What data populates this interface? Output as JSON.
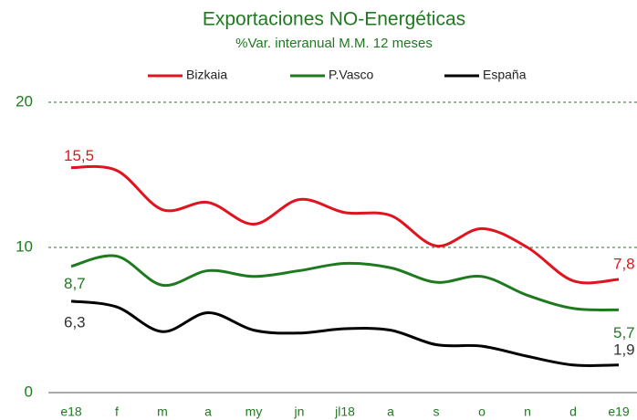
{
  "chart_data": {
    "type": "line",
    "title": "Exportaciones NO-Energéticas",
    "subtitle": "%Var. interanual M.M. 12 meses",
    "categories": [
      "e18",
      "f",
      "m",
      "a",
      "my",
      "jn",
      "jl18",
      "a",
      "s",
      "o",
      "n",
      "d",
      "e19"
    ],
    "series": [
      {
        "name": "Bizkaia",
        "color": "#e0141e",
        "values": [
          15.5,
          15.3,
          12.6,
          13.1,
          11.6,
          13.3,
          12.4,
          12.2,
          10.1,
          11.3,
          10.0,
          7.7,
          7.8
        ],
        "value_labels": [
          "15,5",
          null,
          null,
          null,
          null,
          null,
          null,
          null,
          null,
          null,
          null,
          null,
          "7,8"
        ]
      },
      {
        "name": "P.Vasco",
        "color": "#1f7a1f",
        "values": [
          8.7,
          9.4,
          7.4,
          8.4,
          8.0,
          8.4,
          8.9,
          8.6,
          7.6,
          8.0,
          6.7,
          5.8,
          5.7
        ],
        "value_labels": [
          "8,7",
          null,
          null,
          null,
          null,
          null,
          null,
          null,
          null,
          null,
          null,
          null,
          "5,7"
        ]
      },
      {
        "name": "España",
        "color": "#000000",
        "values": [
          6.3,
          5.9,
          4.2,
          5.5,
          4.3,
          4.1,
          4.4,
          4.3,
          3.3,
          3.2,
          2.5,
          1.9,
          1.9
        ],
        "value_labels": [
          "6,3",
          null,
          null,
          null,
          null,
          null,
          null,
          null,
          null,
          null,
          null,
          null,
          "1,9"
        ]
      }
    ],
    "ylim": [
      0,
      20
    ],
    "yticks": [
      0,
      10,
      20
    ],
    "grid": true,
    "legend": "top"
  }
}
